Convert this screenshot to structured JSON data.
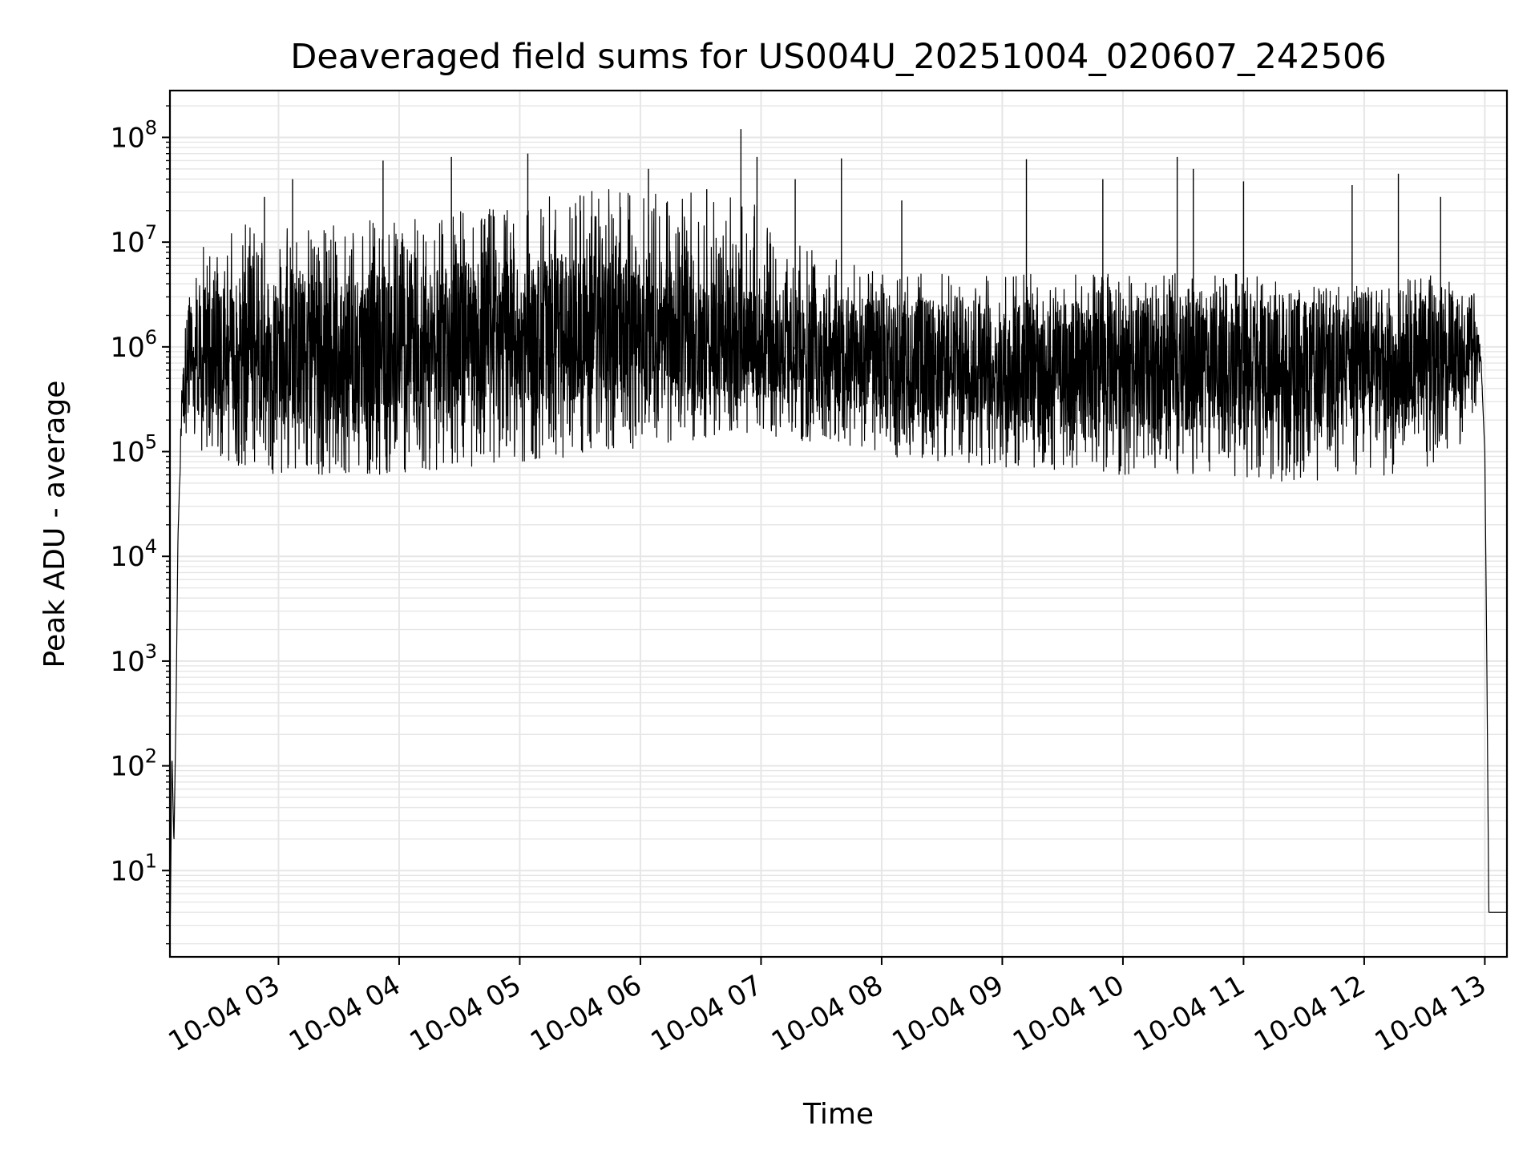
{
  "chart_data": {
    "type": "line",
    "title": "Deaveraged field sums for US004U_20251004_020607_242506",
    "xlabel": "Time",
    "ylabel": "Peak ADU - average",
    "yscale": "log",
    "ylim": [
      1.5,
      280000000
    ],
    "xlim": [
      "2025-10-04 02:06",
      "2025-10-04 13:11"
    ],
    "grid": true,
    "line_color": "#000000",
    "grid_color": "#e6e6e6",
    "x_ticks": [
      {
        "t": "2025-10-04 03:00",
        "label": "10-04 03"
      },
      {
        "t": "2025-10-04 04:00",
        "label": "10-04 04"
      },
      {
        "t": "2025-10-04 05:00",
        "label": "10-04 05"
      },
      {
        "t": "2025-10-04 06:00",
        "label": "10-04 06"
      },
      {
        "t": "2025-10-04 07:00",
        "label": "10-04 07"
      },
      {
        "t": "2025-10-04 08:00",
        "label": "10-04 08"
      },
      {
        "t": "2025-10-04 09:00",
        "label": "10-04 09"
      },
      {
        "t": "2025-10-04 10:00",
        "label": "10-04 10"
      },
      {
        "t": "2025-10-04 11:00",
        "label": "10-04 11"
      },
      {
        "t": "2025-10-04 12:00",
        "label": "10-04 12"
      },
      {
        "t": "2025-10-04 13:00",
        "label": "10-04 13"
      }
    ],
    "y_ticks": [
      {
        "value": 10,
        "base": "10",
        "exp": "1"
      },
      {
        "value": 100,
        "base": "10",
        "exp": "2"
      },
      {
        "value": 1000,
        "base": "10",
        "exp": "3"
      },
      {
        "value": 10000,
        "base": "10",
        "exp": "4"
      },
      {
        "value": 100000,
        "base": "10",
        "exp": "5"
      },
      {
        "value": 1000000,
        "base": "10",
        "exp": "6"
      },
      {
        "value": 10000000,
        "base": "10",
        "exp": "7"
      },
      {
        "value": 100000000,
        "base": "10",
        "exp": "8"
      }
    ],
    "series": [
      {
        "x": [
          "2025-10-04 02:06",
          "2025-10-04 02:07",
          "2025-10-04 02:08",
          "2025-10-04 02:09",
          "2025-10-04 02:10",
          "2025-10-04 02:12",
          "2025-10-04 02:14",
          "2025-10-04 02:20",
          "2025-10-04 02:30",
          "2025-10-04 02:45",
          "2025-10-04 03:00",
          "2025-10-04 03:30",
          "2025-10-04 04:00",
          "2025-10-04 04:30",
          "2025-10-04 05:00",
          "2025-10-04 05:30",
          "2025-10-04 06:00",
          "2025-10-04 06:30",
          "2025-10-04 07:00",
          "2025-10-04 07:30",
          "2025-10-04 08:00",
          "2025-10-04 08:30",
          "2025-10-04 09:00",
          "2025-10-04 09:30",
          "2025-10-04 10:00",
          "2025-10-04 10:30",
          "2025-10-04 11:00",
          "2025-10-04 11:30",
          "2025-10-04 12:00",
          "2025-10-04 12:30",
          "2025-10-04 12:50",
          "2025-10-04 12:55",
          "2025-10-04 12:58",
          "2025-10-04 13:00",
          "2025-10-04 13:01",
          "2025-10-04 13:02",
          "2025-10-04 13:11"
        ],
        "y_center": [
          1.5,
          130,
          18,
          300,
          15000,
          300000,
          800000,
          1000000,
          1000000,
          1000000,
          1000000,
          1000000,
          1000000,
          1200000,
          1400000,
          1500000,
          1500000,
          1200000,
          1000000,
          900000,
          800000,
          750000,
          700000,
          700000,
          700000,
          700000,
          700000,
          700000,
          750000,
          800000,
          1000000,
          1200000,
          800000,
          100000,
          1000,
          4,
          4
        ],
        "y_low": [
          1.5,
          130,
          18,
          300,
          15000,
          200000,
          150000,
          100000,
          80000,
          70000,
          60000,
          60000,
          60000,
          70000,
          80000,
          90000,
          110000,
          130000,
          150000,
          110000,
          90000,
          80000,
          70000,
          65000,
          60000,
          60000,
          55000,
          50000,
          55000,
          70000,
          120000,
          200000,
          800000,
          100000,
          1000,
          4,
          4
        ],
        "y_high": [
          1.5,
          130,
          18,
          300,
          15000,
          500000,
          4000000,
          10000000,
          12000000,
          15000000,
          15000000,
          15000000,
          18000000,
          20000000,
          25000000,
          30000000,
          35000000,
          30000000,
          25000000,
          8000000,
          5000000,
          5000000,
          5000000,
          5000000,
          5000000,
          5000000,
          5000000,
          4000000,
          5000000,
          5000000,
          4000000,
          2000000,
          1000000,
          100000,
          1000,
          4,
          4
        ],
        "spikes": [
          {
            "t": "2025-10-04 02:53",
            "y": 27000000
          },
          {
            "t": "2025-10-04 03:07",
            "y": 40000000
          },
          {
            "t": "2025-10-04 03:52",
            "y": 60000000
          },
          {
            "t": "2025-10-04 04:26",
            "y": 65000000
          },
          {
            "t": "2025-10-04 05:04",
            "y": 70000000
          },
          {
            "t": "2025-10-04 05:30",
            "y": 28000000
          },
          {
            "t": "2025-10-04 06:04",
            "y": 50000000
          },
          {
            "t": "2025-10-04 06:33",
            "y": 32000000
          },
          {
            "t": "2025-10-04 06:50",
            "y": 120000000
          },
          {
            "t": "2025-10-04 06:58",
            "y": 65000000
          },
          {
            "t": "2025-10-04 07:17",
            "y": 40000000
          },
          {
            "t": "2025-10-04 07:40",
            "y": 63000000
          },
          {
            "t": "2025-10-04 08:10",
            "y": 25000000
          },
          {
            "t": "2025-10-04 09:12",
            "y": 62000000
          },
          {
            "t": "2025-10-04 09:50",
            "y": 40000000
          },
          {
            "t": "2025-10-04 10:27",
            "y": 65000000
          },
          {
            "t": "2025-10-04 10:35",
            "y": 50000000
          },
          {
            "t": "2025-10-04 11:00",
            "y": 38000000
          },
          {
            "t": "2025-10-04 11:54",
            "y": 35000000
          },
          {
            "t": "2025-10-04 12:17",
            "y": 45000000
          },
          {
            "t": "2025-10-04 12:38",
            "y": 27000000
          }
        ]
      }
    ]
  }
}
